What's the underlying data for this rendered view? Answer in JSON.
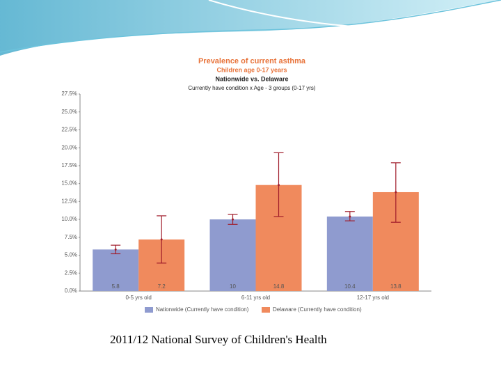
{
  "chart_data": {
    "type": "bar",
    "title": "Prevalence of current asthma",
    "subtitles": [
      "Children age 0-17 years",
      "Nationwide vs. Delaware",
      "Currently have condition x Age - 3 groups (0-17 yrs)"
    ],
    "categories": [
      "0-5 yrs old",
      "6-11 yrs old",
      "12-17 yrs old"
    ],
    "series": [
      {
        "name": "Nationwide (Currently have condition)",
        "color": "#8f9bcf",
        "values": [
          5.8,
          10.0,
          10.4
        ],
        "ci": [
          [
            5.2,
            6.4
          ],
          [
            9.3,
            10.7
          ],
          [
            9.8,
            11.1
          ]
        ]
      },
      {
        "name": "Delaware (Currently have condition)",
        "color": "#f08a5d",
        "values": [
          7.2,
          14.8,
          13.8
        ],
        "ci": [
          [
            3.9,
            10.5
          ],
          [
            10.4,
            19.3
          ],
          [
            9.6,
            17.9
          ]
        ]
      }
    ],
    "error_color": "#a01c2a",
    "ylim": [
      0,
      27.5
    ],
    "yticks": [
      {
        "value": 0,
        "label": "0.0%"
      },
      {
        "value": 2.5,
        "label": "2.5%"
      },
      {
        "value": 5,
        "label": "5.0%"
      },
      {
        "value": 7.5,
        "label": "7.5%"
      },
      {
        "value": 10,
        "label": "10.0%"
      },
      {
        "value": 12.5,
        "label": "12.5%"
      },
      {
        "value": 15,
        "label": "15.0%"
      },
      {
        "value": 17.5,
        "label": "17.5%"
      },
      {
        "value": 20,
        "label": "20.0%"
      },
      {
        "value": 22.5,
        "label": "22.5%"
      },
      {
        "value": 25,
        "label": "25.0%"
      },
      {
        "value": 27.5,
        "label": "27.5%"
      }
    ]
  },
  "footer": "2011/12 National Survey of Children's Health"
}
